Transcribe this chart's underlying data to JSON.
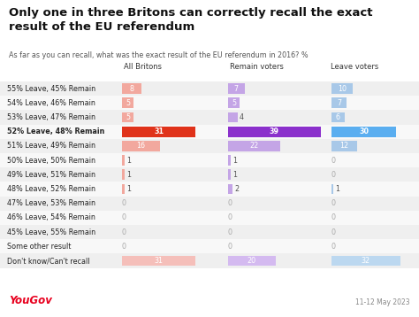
{
  "title": "Only one in three Britons can correctly recall the exact\nresult of the EU referendum",
  "subtitle": "As far as you can recall, what was the exact result of the EU referendum in 2016? %",
  "col_headers": [
    "All Britons",
    "Remain voters",
    "Leave voters"
  ],
  "rows": [
    "55% Leave, 45% Remain",
    "54% Leave, 46% Remain",
    "53% Leave, 47% Remain",
    "52% Leave, 48% Remain",
    "51% Leave, 49% Remain",
    "50% Leave, 50% Remain",
    "49% Leave, 51% Remain",
    "48% Leave, 52% Remain",
    "47% Leave, 53% Remain",
    "46% Leave, 54% Remain",
    "45% Leave, 55% Remain",
    "Some other result",
    "Don't know/Can't recall"
  ],
  "all_britons": [
    8,
    5,
    5,
    31,
    16,
    1,
    1,
    1,
    0,
    0,
    0,
    0,
    31
  ],
  "remain_voters": [
    7,
    5,
    4,
    39,
    22,
    1,
    1,
    2,
    0,
    0,
    0,
    0,
    20
  ],
  "leave_voters": [
    10,
    7,
    6,
    30,
    12,
    0,
    0,
    1,
    0,
    0,
    0,
    0,
    32
  ],
  "bold_row_idx": 3,
  "bar_colors_normal": [
    "#f2a89e",
    "#c4a5e6",
    "#a8c8e8"
  ],
  "bar_colors_highlight": [
    "#e0321a",
    "#8b30cc",
    "#5aaef0"
  ],
  "bar_colors_pale": [
    "#f5bfba",
    "#d4baf0",
    "#bcd8f0"
  ],
  "bg_row_even": "#efefef",
  "bg_row_odd": "#f8f8f8",
  "bg_white": "#ffffff",
  "yougov_color": "#e8001e",
  "date_text": "11-12 May 2023",
  "max_val": 39
}
